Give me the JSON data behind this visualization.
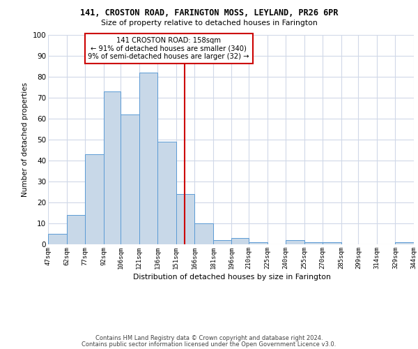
{
  "title1": "141, CROSTON ROAD, FARINGTON MOSS, LEYLAND, PR26 6PR",
  "title2": "Size of property relative to detached houses in Farington",
  "xlabel": "Distribution of detached houses by size in Farington",
  "ylabel": "Number of detached properties",
  "footer1": "Contains HM Land Registry data © Crown copyright and database right 2024.",
  "footer2": "Contains public sector information licensed under the Open Government Licence v3.0.",
  "property_label": "141 CROSTON ROAD: 158sqm",
  "pct_smaller": "91% of detached houses are smaller (340)",
  "pct_larger": "9% of semi-detached houses are larger (32)",
  "vline_x": 158,
  "bin_edges": [
    47,
    62,
    77,
    92,
    106,
    121,
    136,
    151,
    166,
    181,
    196,
    210,
    225,
    240,
    255,
    270,
    285,
    299,
    314,
    329,
    344
  ],
  "bar_heights": [
    5,
    14,
    43,
    73,
    62,
    82,
    49,
    24,
    10,
    2,
    3,
    1,
    0,
    2,
    1,
    1,
    0,
    0,
    0,
    1
  ],
  "bar_color": "#c8d8e8",
  "bar_edge_color": "#5b9bd5",
  "vline_color": "#cc0000",
  "annotation_box_color": "#cc0000",
  "grid_color": "#d0d8e8",
  "ylim": [
    0,
    100
  ],
  "yticks": [
    0,
    10,
    20,
    30,
    40,
    50,
    60,
    70,
    80,
    90,
    100
  ],
  "tick_labels": [
    "47sqm",
    "62sqm",
    "77sqm",
    "92sqm",
    "106sqm",
    "121sqm",
    "136sqm",
    "151sqm",
    "166sqm",
    "181sqm",
    "196sqm",
    "210sqm",
    "225sqm",
    "240sqm",
    "255sqm",
    "270sqm",
    "285sqm",
    "299sqm",
    "314sqm",
    "329sqm",
    "344sqm"
  ]
}
